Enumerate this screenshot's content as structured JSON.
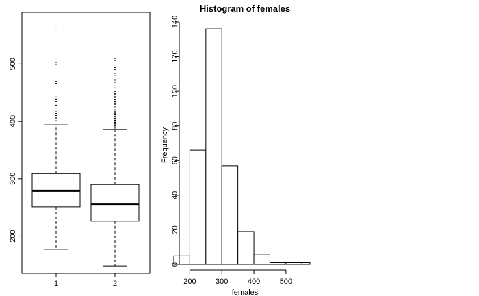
{
  "chart_data": [
    {
      "type": "box",
      "title": "",
      "xlabel": "",
      "ylabel": "",
      "ylim": [
        135,
        590
      ],
      "xticks": [
        "1",
        "2"
      ],
      "yticks": [
        200,
        300,
        400,
        500
      ],
      "boxes": [
        {
          "label": "1",
          "min": 177,
          "q1": 251,
          "median": 279,
          "q3": 309,
          "max": 394,
          "outliers": [
            403,
            408,
            412,
            415,
            430,
            436,
            441,
            468,
            501,
            566
          ]
        },
        {
          "label": "2",
          "min": 148,
          "q1": 226,
          "median": 256,
          "q3": 290,
          "max": 386,
          "outliers": [
            390,
            394,
            397,
            400,
            404,
            407,
            410,
            413,
            416,
            418,
            422,
            428,
            432,
            436,
            440,
            445,
            450,
            460,
            470,
            482,
            492,
            508
          ]
        }
      ]
    },
    {
      "type": "histogram",
      "title": "Histogram of females",
      "xlabel": "females",
      "ylabel": "Frequency",
      "xlim": [
        150,
        575
      ],
      "ylim": [
        0,
        140
      ],
      "xticks": [
        200,
        300,
        400,
        500
      ],
      "yticks": [
        0,
        20,
        40,
        60,
        80,
        100,
        120,
        140
      ],
      "bins": [
        {
          "from": 150,
          "to": 200,
          "count": 5
        },
        {
          "from": 200,
          "to": 250,
          "count": 66
        },
        {
          "from": 250,
          "to": 300,
          "count": 136
        },
        {
          "from": 300,
          "to": 350,
          "count": 57
        },
        {
          "from": 350,
          "to": 400,
          "count": 19
        },
        {
          "from": 400,
          "to": 450,
          "count": 6
        },
        {
          "from": 450,
          "to": 500,
          "count": 1
        },
        {
          "from": 500,
          "to": 550,
          "count": 1
        },
        {
          "from": 550,
          "to": 600,
          "count": 1
        }
      ]
    }
  ]
}
